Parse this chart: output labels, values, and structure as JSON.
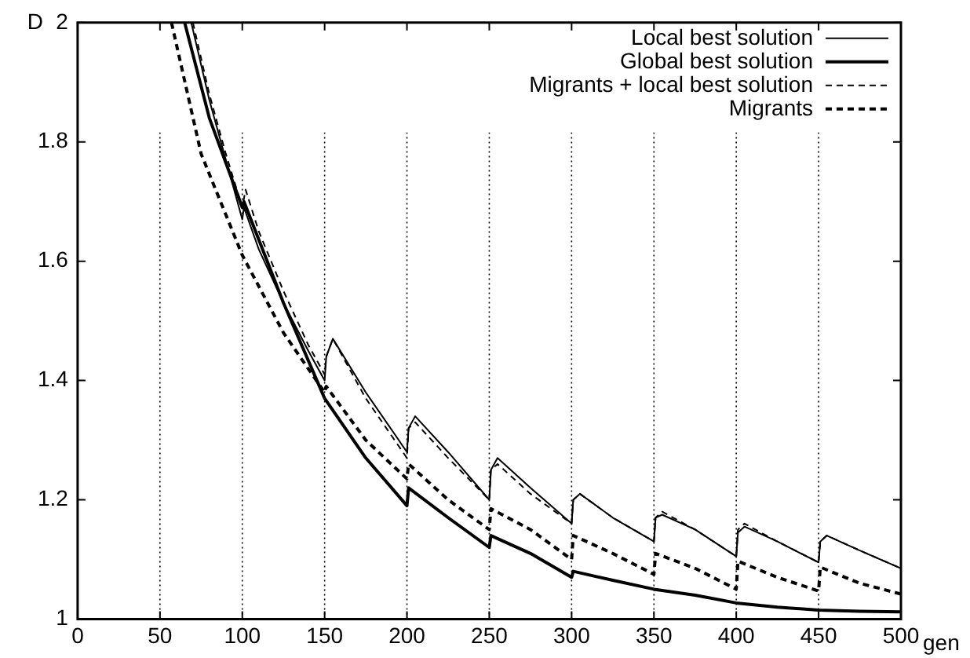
{
  "chart_data": {
    "type": "line",
    "xlabel": "gen",
    "ylabel": "D",
    "xlim": [
      0,
      500
    ],
    "xticks": [
      0,
      50,
      100,
      150,
      200,
      250,
      300,
      350,
      400,
      450,
      500
    ],
    "ylim": [
      1,
      2
    ],
    "yticks": [
      1,
      1.2,
      1.4,
      1.6,
      1.8,
      2
    ],
    "grid": false,
    "legend": "top right",
    "marker": "none",
    "ref_lines": [
      {
        "axis": "x",
        "value": 50,
        "line_style": "dotted"
      },
      {
        "axis": "x",
        "value": 100,
        "line_style": "dotted"
      },
      {
        "axis": "x",
        "value": 150,
        "line_style": "dotted"
      },
      {
        "axis": "x",
        "value": 200,
        "line_style": "dotted"
      },
      {
        "axis": "x",
        "value": 250,
        "line_style": "dotted"
      },
      {
        "axis": "x",
        "value": 300,
        "line_style": "dotted"
      },
      {
        "axis": "x",
        "value": 350,
        "line_style": "dotted"
      },
      {
        "axis": "x",
        "value": 400,
        "line_style": "dotted"
      },
      {
        "axis": "x",
        "value": 450,
        "line_style": "dotted"
      }
    ],
    "series": [
      {
        "name": "Local best solution",
        "color": "#000000",
        "line_style": "solid",
        "x": [
          69,
          80,
          90,
          100,
          101,
          110,
          125,
          140,
          150,
          151,
          155,
          175,
          200,
          201,
          205,
          225,
          250,
          251,
          255,
          275,
          300,
          301,
          305,
          325,
          350,
          351,
          355,
          375,
          400,
          401,
          405,
          425,
          450,
          451,
          455,
          475,
          500
        ],
        "values": [
          2.0,
          1.87,
          1.77,
          1.67,
          1.69,
          1.62,
          1.53,
          1.45,
          1.4,
          1.44,
          1.47,
          1.38,
          1.28,
          1.32,
          1.34,
          1.28,
          1.2,
          1.25,
          1.27,
          1.22,
          1.16,
          1.2,
          1.21,
          1.17,
          1.13,
          1.17,
          1.175,
          1.15,
          1.105,
          1.145,
          1.155,
          1.13,
          1.095,
          1.13,
          1.14,
          1.115,
          1.085
        ]
      },
      {
        "name": "Global best solution",
        "color": "#000000",
        "line_style": "solid",
        "x": [
          65,
          80,
          100,
          101,
          125,
          150,
          175,
          200,
          201,
          225,
          250,
          251,
          275,
          300,
          301,
          325,
          350,
          375,
          400,
          425,
          450,
          475,
          500
        ],
        "values": [
          2.0,
          1.84,
          1.69,
          1.7,
          1.53,
          1.37,
          1.27,
          1.19,
          1.22,
          1.17,
          1.12,
          1.14,
          1.11,
          1.07,
          1.08,
          1.065,
          1.05,
          1.04,
          1.027,
          1.02,
          1.015,
          1.013,
          1.012
        ]
      },
      {
        "name": "Migrants + local best solution",
        "color": "#000000",
        "line_style": "dashed",
        "x": [
          70,
          80,
          90,
          100,
          102,
          110,
          125,
          140,
          150,
          151,
          155,
          175,
          200,
          201,
          205,
          225,
          250,
          251,
          255,
          275,
          300,
          301,
          305,
          325,
          350,
          351,
          355,
          375,
          400,
          401,
          405,
          425,
          450,
          451,
          455,
          475,
          500
        ],
        "values": [
          2.0,
          1.88,
          1.78,
          1.69,
          1.72,
          1.65,
          1.55,
          1.46,
          1.41,
          1.44,
          1.47,
          1.37,
          1.27,
          1.32,
          1.33,
          1.27,
          1.2,
          1.25,
          1.26,
          1.21,
          1.16,
          1.2,
          1.21,
          1.17,
          1.13,
          1.17,
          1.18,
          1.15,
          1.105,
          1.15,
          1.16,
          1.13,
          1.095,
          1.13,
          1.14,
          1.115,
          1.085
        ]
      },
      {
        "name": "Migrants",
        "color": "#000000",
        "line_style": "dashed",
        "x": [
          57,
          75,
          100,
          125,
          150,
          151,
          175,
          200,
          201,
          225,
          250,
          251,
          275,
          300,
          301,
          325,
          350,
          351,
          375,
          400,
          401,
          425,
          450,
          451,
          475,
          500
        ],
        "values": [
          2.0,
          1.78,
          1.61,
          1.48,
          1.38,
          1.39,
          1.3,
          1.235,
          1.26,
          1.2,
          1.15,
          1.185,
          1.15,
          1.1,
          1.14,
          1.11,
          1.075,
          1.11,
          1.085,
          1.05,
          1.097,
          1.07,
          1.047,
          1.087,
          1.06,
          1.042
        ]
      }
    ]
  }
}
